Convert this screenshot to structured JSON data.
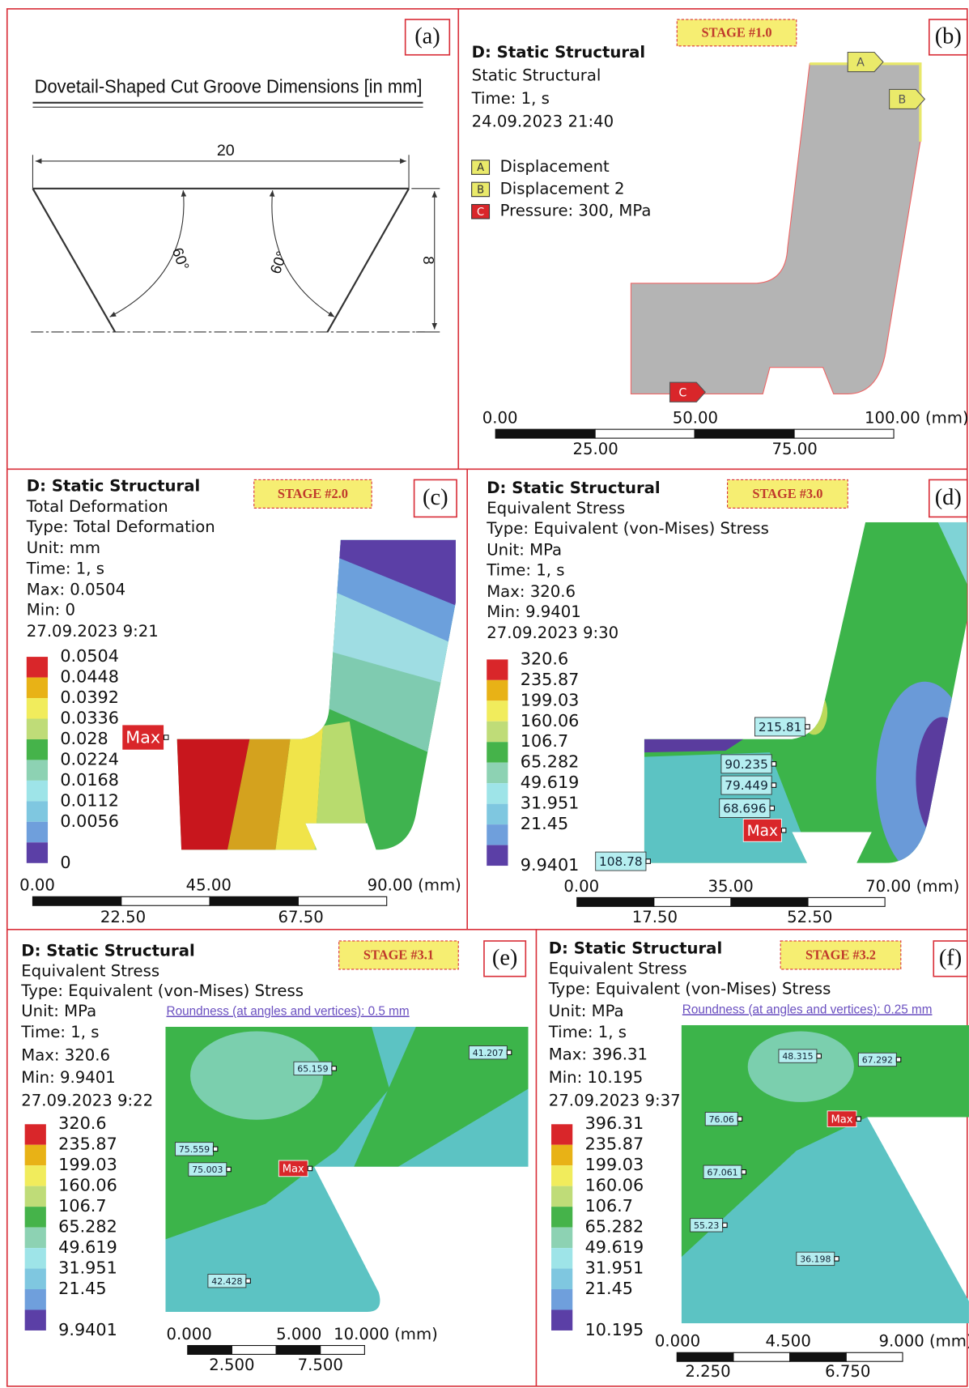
{
  "panels": [
    {
      "label": "(a)",
      "title": "Dovetail-Shaped Cut Groove Dimensions [in mm]",
      "width": "20",
      "depth": "8",
      "angles": [
        "60°",
        "60°"
      ]
    },
    {
      "label": "(b)",
      "stage": "STAGE #1.0",
      "header": [
        "D: Static Structural",
        "Static Structural",
        "Time: 1, s",
        "24.09.2023 21:40"
      ],
      "supports": [
        {
          "tag": "A",
          "text": "Displacement"
        },
        {
          "tag": "B",
          "text": "Displacement 2"
        },
        {
          "tag": "C",
          "text": "Pressure: 300, MPa"
        }
      ],
      "scale": {
        "top": [
          "0.00",
          "50.00",
          "100.00 (mm)"
        ],
        "bottom": [
          "25.00",
          "75.00"
        ]
      }
    },
    {
      "label": "(c)",
      "stage": "STAGE #2.0",
      "header": [
        "D: Static Structural",
        "Total Deformation",
        "Type: Total Deformation",
        "Unit: mm",
        "Time: 1, s",
        "Max: 0.0504",
        "Min: 0",
        "27.09.2023 9:21"
      ],
      "legend": [
        "0.0504",
        "0.0448",
        "0.0392",
        "0.0336",
        "0.028",
        "0.0224",
        "0.0168",
        "0.0112",
        "0.0056",
        "0"
      ],
      "probes": [
        "Max"
      ],
      "scale": {
        "top": [
          "0.00",
          "45.00",
          "90.00 (mm)"
        ],
        "bottom": [
          "22.50",
          "67.50"
        ]
      }
    },
    {
      "label": "(d)",
      "stage": "STAGE #3.0",
      "header": [
        "D: Static Structural",
        "Equivalent Stress",
        "Type: Equivalent (von-Mises) Stress",
        "Unit: MPa",
        "Time: 1, s",
        "Max: 320.6",
        "Min: 9.9401",
        "27.09.2023 9:30"
      ],
      "legend": [
        "320.6",
        "235.87",
        "199.03",
        "160.06",
        "106.7",
        "65.282",
        "49.619",
        "31.951",
        "21.45",
        "9.9401"
      ],
      "probes": [
        "215.81",
        "90.235",
        "79.449",
        "68.696",
        "Max",
        "108.78"
      ],
      "scale": {
        "top": [
          "0.00",
          "35.00",
          "70.00 (mm)"
        ],
        "bottom": [
          "17.50",
          "52.50"
        ]
      }
    },
    {
      "label": "(e)",
      "stage": "STAGE #3.1",
      "header": [
        "D: Static Structural",
        "Equivalent Stress",
        "Type: Equivalent (von-Mises) Stress",
        "Unit: MPa",
        "Time: 1, s",
        "Max: 320.6",
        "Min: 9.9401",
        "27.09.2023 9:22"
      ],
      "roundness": "Roundness (at angles and vertices): 0.5 mm",
      "legend": [
        "320.6",
        "235.87",
        "199.03",
        "160.06",
        "106.7",
        "65.282",
        "49.619",
        "31.951",
        "21.45",
        "9.9401"
      ],
      "probes": [
        "65.159",
        "41.207",
        "75.559",
        "75.003",
        "Max",
        "42.428"
      ],
      "scale": {
        "top": [
          "0.000",
          "5.000",
          "10.000 (mm)"
        ],
        "bottom": [
          "2.500",
          "7.500"
        ]
      }
    },
    {
      "label": "(f)",
      "stage": "STAGE #3.2",
      "header": [
        "D: Static Structural",
        "Equivalent Stress",
        "Type: Equivalent (von-Mises) Stress",
        "Unit: MPa",
        "Time: 1, s",
        "Max: 396.31",
        "Min: 10.195",
        "27.09.2023 9:37"
      ],
      "roundness": "Roundness (at angles and vertices): 0.25 mm",
      "legend": [
        "396.31",
        "235.87",
        "199.03",
        "160.06",
        "106.7",
        "65.282",
        "49.619",
        "31.951",
        "21.45",
        "10.195"
      ],
      "probes": [
        "67.292",
        "48.315",
        "76.06",
        "Max",
        "67.061",
        "55.23",
        "36.198"
      ],
      "scale": {
        "top": [
          "0.000",
          "4.500",
          "9.000 (mm)"
        ],
        "bottom": [
          "2.250",
          "6.750"
        ]
      }
    }
  ]
}
